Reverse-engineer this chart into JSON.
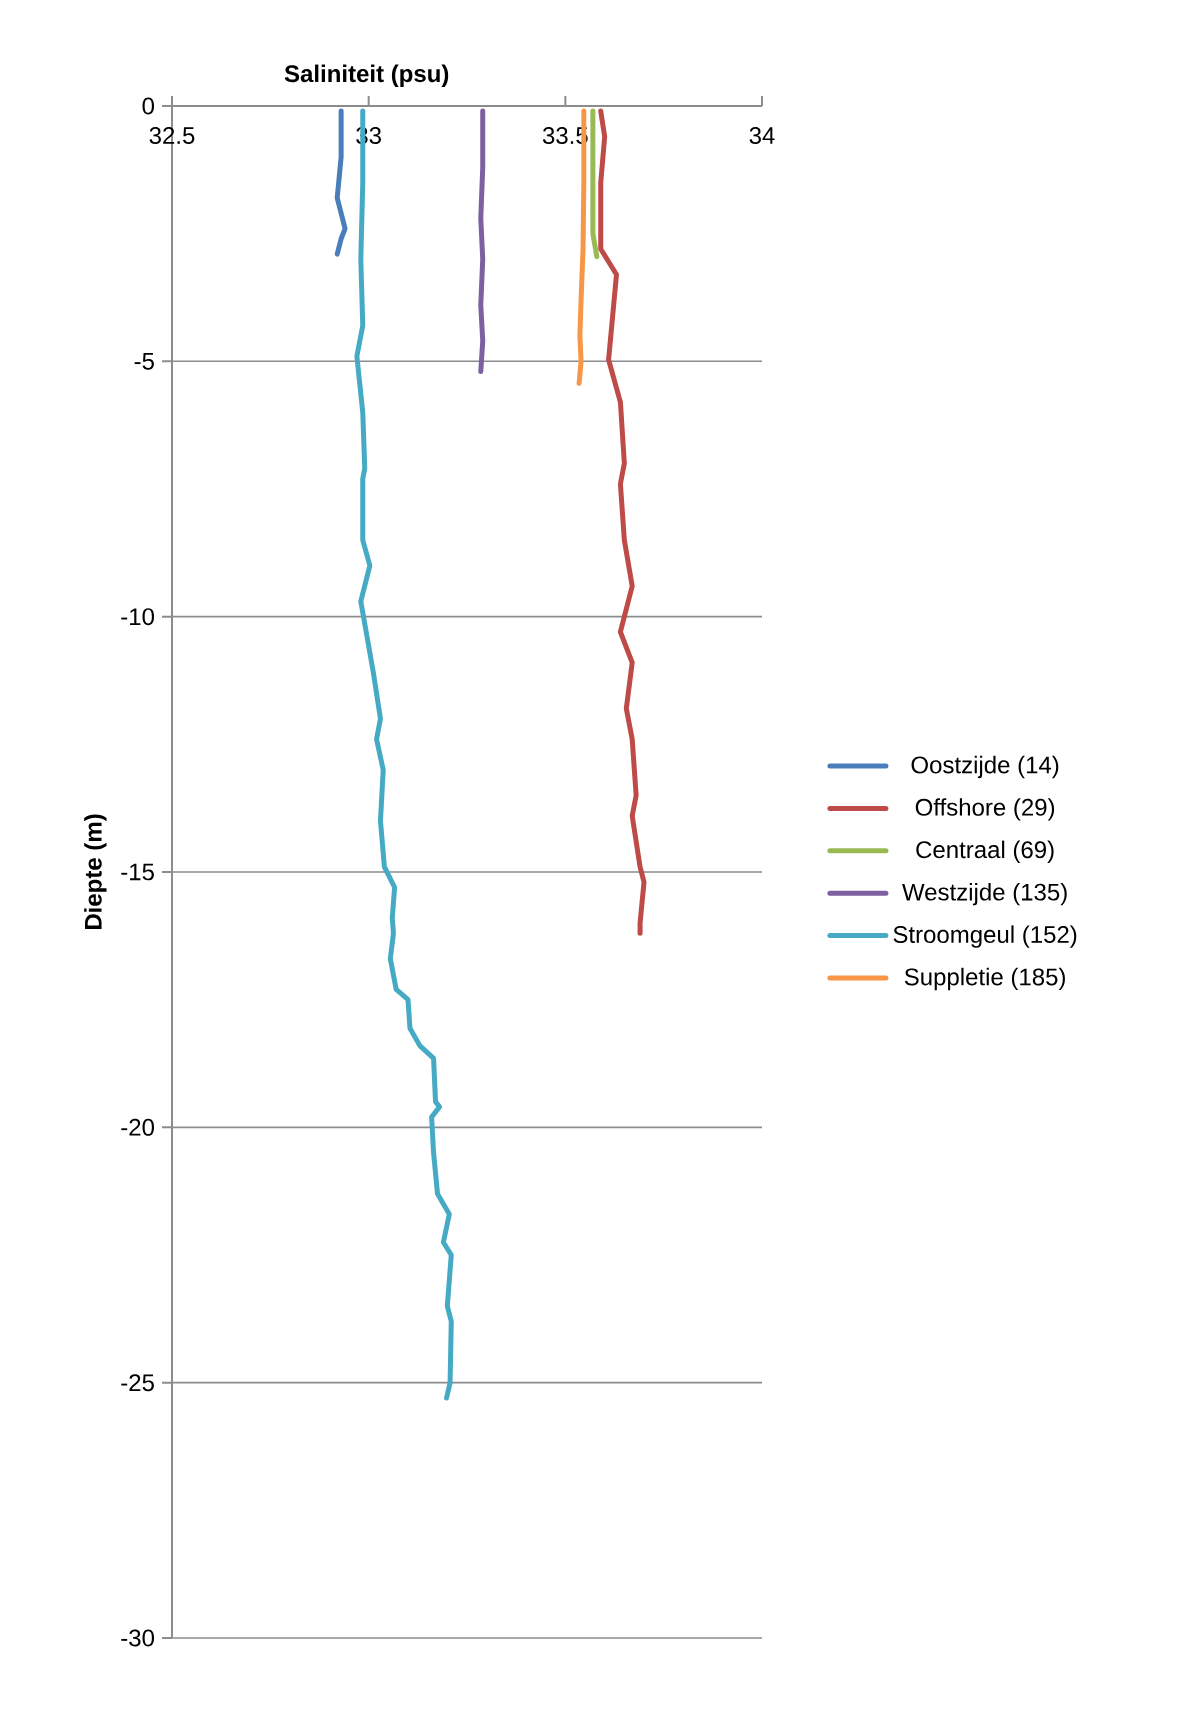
{
  "chart_data": {
    "type": "line",
    "xlabel": "Saliniteit (psu)",
    "ylabel": "Diepte (m)",
    "xlim": [
      32.5,
      34
    ],
    "xticks": [
      32.5,
      33,
      33.5,
      34
    ],
    "ylim": [
      -30,
      0
    ],
    "yticks": [
      0,
      -5,
      -10,
      -15,
      -20,
      -25,
      -30
    ],
    "grid": "y",
    "legend": "right",
    "series": [
      {
        "name": "Oostzijde (14)",
        "color": "#4a7ebb",
        "x": [
          32.93,
          32.93,
          32.92,
          32.94,
          32.93,
          32.92
        ],
        "values": [
          -0.1,
          -1,
          -1.8,
          -2.4,
          -2.6,
          -2.9
        ]
      },
      {
        "name": "Offshore (29)",
        "color": "#be4b48",
        "x": [
          33.59,
          33.6,
          33.59,
          33.59,
          33.63,
          33.61,
          33.64,
          33.65,
          33.64,
          33.65,
          33.67,
          33.64,
          33.67,
          33.655,
          33.67,
          33.68,
          33.67,
          33.69,
          33.7,
          33.69,
          33.69
        ],
        "values": [
          -0.1,
          -0.6,
          -1.5,
          -2.8,
          -3.3,
          -4.97,
          -5.8,
          -7.0,
          -7.4,
          -8.5,
          -9.4,
          -10.3,
          -10.9,
          -11.8,
          -12.4,
          -13.5,
          -13.9,
          -14.9,
          -15.2,
          -16.0,
          -16.2
        ]
      },
      {
        "name": "Centraal (69)",
        "color": "#98b954",
        "x": [
          33.57,
          33.57,
          33.57,
          33.58
        ],
        "values": [
          -0.1,
          -1.5,
          -2.5,
          -2.95
        ]
      },
      {
        "name": "Westzijde (135)",
        "color": "#7d60a0",
        "x": [
          33.29,
          33.29,
          33.285,
          33.29,
          33.285,
          33.29,
          33.285
        ],
        "values": [
          -0.1,
          -1.2,
          -2.2,
          -3.0,
          -3.9,
          -4.6,
          -5.2
        ]
      },
      {
        "name": "Stroomgeul (152)",
        "color": "#46aac5",
        "x": [
          32.985,
          32.985,
          32.98,
          32.985,
          32.97,
          32.985,
          32.99,
          32.985,
          32.985,
          33.003,
          32.98,
          33.012,
          33.03,
          33.02,
          33.037,
          33.03,
          33.04,
          33.066,
          33.06,
          33.063,
          33.055,
          33.07,
          33.1,
          33.105,
          33.13,
          33.165,
          33.17,
          33.18,
          33.16,
          33.165,
          33.175,
          33.205,
          33.19,
          33.21,
          33.2,
          33.21,
          33.207,
          33.198
        ],
        "values": [
          -0.1,
          -1.5,
          -3.0,
          -4.3,
          -4.9,
          -6.0,
          -7.1,
          -7.3,
          -8.5,
          -9.0,
          -9.7,
          -11.1,
          -12.0,
          -12.4,
          -13.0,
          -14.0,
          -14.9,
          -15.3,
          -15.9,
          -16.2,
          -16.7,
          -17.3,
          -17.5,
          -18.06,
          -18.4,
          -18.65,
          -19.5,
          -19.6,
          -19.8,
          -20.5,
          -21.3,
          -21.7,
          -22.25,
          -22.5,
          -23.5,
          -23.8,
          -25.0,
          -25.3
        ]
      },
      {
        "name": "Suppletie (185)",
        "color": "#f79646",
        "x": [
          33.547,
          33.547,
          33.545,
          33.54,
          33.537,
          33.54,
          33.535
        ],
        "values": [
          -0.1,
          -1.5,
          -2.8,
          -3.8,
          -4.5,
          -5.0,
          -5.43
        ]
      }
    ]
  }
}
